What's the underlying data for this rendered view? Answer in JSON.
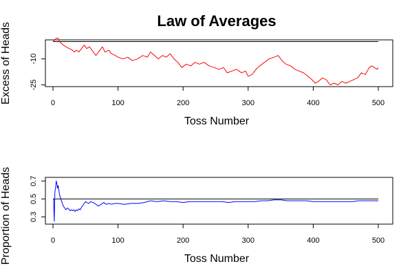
{
  "title": "Law of Averages",
  "colors": {
    "excess_series": "#ff0000",
    "proportion_series": "#0000ff",
    "axes": "#000000"
  },
  "chart_data": [
    {
      "type": "line",
      "title": "Law of Averages",
      "xlabel": "Toss Number",
      "ylabel": "Excess of Heads",
      "xlim": [
        0,
        500
      ],
      "ylim": [
        -26,
        1
      ],
      "xticks": [
        0,
        100,
        200,
        300,
        400,
        500
      ],
      "xtick_labels": [
        "0",
        "100",
        "200",
        "300",
        "400",
        "500"
      ],
      "yticks": [
        -25,
        -10
      ],
      "ytick_labels": [
        "-25",
        "-10"
      ],
      "reference_line": 0,
      "grid": false,
      "series": [
        {
          "color": "#ff0000",
          "points": [
            [
              0,
              0
            ],
            [
              3,
              1
            ],
            [
              5,
              2
            ],
            [
              8,
              2
            ],
            [
              10,
              0
            ],
            [
              13,
              -1
            ],
            [
              16,
              -2
            ],
            [
              20,
              -3
            ],
            [
              25,
              -4
            ],
            [
              30,
              -5
            ],
            [
              33,
              -6
            ],
            [
              36,
              -5
            ],
            [
              40,
              -6
            ],
            [
              44,
              -4
            ],
            [
              48,
              -2
            ],
            [
              52,
              -4
            ],
            [
              56,
              -3
            ],
            [
              60,
              -5
            ],
            [
              66,
              -8
            ],
            [
              72,
              -5
            ],
            [
              76,
              -3
            ],
            [
              80,
              -6
            ],
            [
              86,
              -5
            ],
            [
              90,
              -7
            ],
            [
              96,
              -8
            ],
            [
              100,
              -9
            ],
            [
              108,
              -10
            ],
            [
              115,
              -9
            ],
            [
              122,
              -11
            ],
            [
              130,
              -10
            ],
            [
              138,
              -8
            ],
            [
              145,
              -9
            ],
            [
              150,
              -6
            ],
            [
              156,
              -8
            ],
            [
              162,
              -10
            ],
            [
              168,
              -8
            ],
            [
              174,
              -9
            ],
            [
              180,
              -7
            ],
            [
              186,
              -10
            ],
            [
              192,
              -12
            ],
            [
              198,
              -15
            ],
            [
              205,
              -13
            ],
            [
              212,
              -14
            ],
            [
              218,
              -12
            ],
            [
              225,
              -13
            ],
            [
              232,
              -12
            ],
            [
              240,
              -14
            ],
            [
              248,
              -15
            ],
            [
              255,
              -16
            ],
            [
              262,
              -15
            ],
            [
              268,
              -18
            ],
            [
              275,
              -17
            ],
            [
              282,
              -16
            ],
            [
              290,
              -18
            ],
            [
              296,
              -17
            ],
            [
              300,
              -20
            ],
            [
              306,
              -19
            ],
            [
              312,
              -16
            ],
            [
              318,
              -14
            ],
            [
              325,
              -12
            ],
            [
              332,
              -10
            ],
            [
              340,
              -9
            ],
            [
              346,
              -8
            ],
            [
              352,
              -11
            ],
            [
              358,
              -13
            ],
            [
              365,
              -14
            ],
            [
              372,
              -16
            ],
            [
              378,
              -17
            ],
            [
              385,
              -18
            ],
            [
              392,
              -20
            ],
            [
              398,
              -22
            ],
            [
              403,
              -24
            ],
            [
              408,
              -23
            ],
            [
              414,
              -21
            ],
            [
              420,
              -22
            ],
            [
              426,
              -25
            ],
            [
              432,
              -24
            ],
            [
              438,
              -25
            ],
            [
              444,
              -23
            ],
            [
              450,
              -24
            ],
            [
              456,
              -23
            ],
            [
              462,
              -22
            ],
            [
              468,
              -21
            ],
            [
              474,
              -18
            ],
            [
              480,
              -19
            ],
            [
              486,
              -15
            ],
            [
              490,
              -14
            ],
            [
              494,
              -15
            ],
            [
              498,
              -16
            ],
            [
              500,
              -15
            ]
          ]
        }
      ]
    },
    {
      "type": "line",
      "xlabel": "Toss Number",
      "ylabel": "Proportion of Heads",
      "xlim": [
        0,
        500
      ],
      "ylim": [
        0.22,
        0.74
      ],
      "xticks": [
        0,
        100,
        200,
        300,
        400,
        500
      ],
      "xtick_labels": [
        "0",
        "100",
        "200",
        "300",
        "400",
        "500"
      ],
      "yticks": [
        0.3,
        0.5,
        0.7
      ],
      "ytick_labels": [
        "0.3",
        "0.5",
        "0.7"
      ],
      "reference_line": 0.5,
      "grid": false,
      "series": [
        {
          "color": "#0000ff",
          "points": [
            [
              1,
              0.5
            ],
            [
              2,
              0.25
            ],
            [
              3,
              0.58
            ],
            [
              4,
              0.62
            ],
            [
              5,
              0.7
            ],
            [
              6,
              0.67
            ],
            [
              7,
              0.62
            ],
            [
              8,
              0.65
            ],
            [
              9,
              0.6
            ],
            [
              10,
              0.55
            ],
            [
              12,
              0.5
            ],
            [
              14,
              0.46
            ],
            [
              16,
              0.42
            ],
            [
              18,
              0.4
            ],
            [
              20,
              0.38
            ],
            [
              22,
              0.4
            ],
            [
              24,
              0.39
            ],
            [
              26,
              0.37
            ],
            [
              28,
              0.38
            ],
            [
              30,
              0.37
            ],
            [
              32,
              0.38
            ],
            [
              34,
              0.36
            ],
            [
              36,
              0.38
            ],
            [
              38,
              0.37
            ],
            [
              40,
              0.39
            ],
            [
              42,
              0.38
            ],
            [
              44,
              0.41
            ],
            [
              46,
              0.43
            ],
            [
              48,
              0.45
            ],
            [
              50,
              0.47
            ],
            [
              52,
              0.46
            ],
            [
              55,
              0.45
            ],
            [
              58,
              0.47
            ],
            [
              62,
              0.46
            ],
            [
              66,
              0.44
            ],
            [
              70,
              0.42
            ],
            [
              74,
              0.44
            ],
            [
              78,
              0.46
            ],
            [
              82,
              0.44
            ],
            [
              86,
              0.45
            ],
            [
              90,
              0.44
            ],
            [
              95,
              0.45
            ],
            [
              100,
              0.45
            ],
            [
              110,
              0.44
            ],
            [
              120,
              0.45
            ],
            [
              130,
              0.45
            ],
            [
              140,
              0.46
            ],
            [
              150,
              0.48
            ],
            [
              160,
              0.47
            ],
            [
              170,
              0.48
            ],
            [
              180,
              0.47
            ],
            [
              190,
              0.47
            ],
            [
              200,
              0.46
            ],
            [
              210,
              0.47
            ],
            [
              220,
              0.47
            ],
            [
              230,
              0.47
            ],
            [
              240,
              0.47
            ],
            [
              250,
              0.47
            ],
            [
              260,
              0.47
            ],
            [
              270,
              0.46
            ],
            [
              280,
              0.47
            ],
            [
              290,
              0.47
            ],
            [
              300,
              0.47
            ],
            [
              310,
              0.47
            ],
            [
              320,
              0.48
            ],
            [
              330,
              0.48
            ],
            [
              340,
              0.49
            ],
            [
              350,
              0.49
            ],
            [
              360,
              0.48
            ],
            [
              370,
              0.48
            ],
            [
              380,
              0.48
            ],
            [
              390,
              0.48
            ],
            [
              400,
              0.47
            ],
            [
              410,
              0.47
            ],
            [
              420,
              0.47
            ],
            [
              430,
              0.47
            ],
            [
              440,
              0.47
            ],
            [
              450,
              0.47
            ],
            [
              460,
              0.47
            ],
            [
              470,
              0.48
            ],
            [
              480,
              0.48
            ],
            [
              490,
              0.48
            ],
            [
              500,
              0.48
            ]
          ]
        }
      ]
    }
  ]
}
